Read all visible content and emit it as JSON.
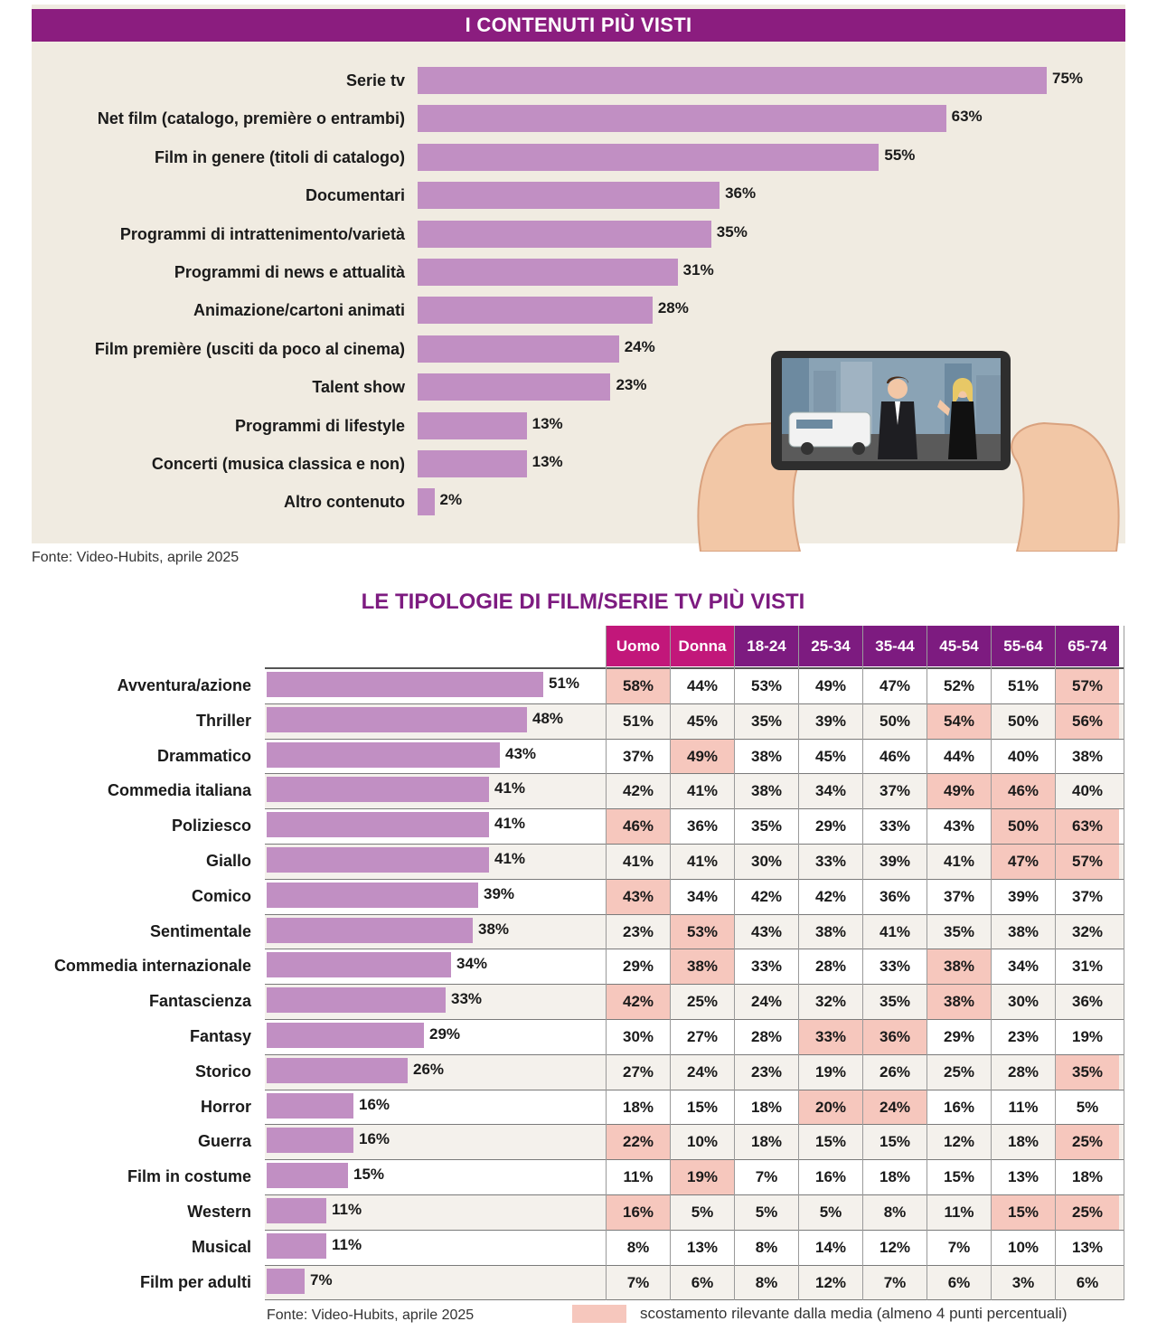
{
  "chart_data": [
    {
      "type": "bar",
      "orientation": "horizontal",
      "title": "I CONTENUTI PIÙ VISTI",
      "categories": [
        "Serie tv",
        "Net film (catalogo, première o entrambi)",
        "Film in genere (titoli di catalogo)",
        "Documentari",
        "Programmi di intrattenimento/varietà",
        "Programmi di news e attualità",
        "Animazione/cartoni animati",
        "Film première (usciti da poco al cinema)",
        "Talent show",
        "Programmi di lifestyle",
        "Concerti (musica classica e non)",
        "Altro contenuto"
      ],
      "values": [
        75,
        63,
        55,
        36,
        35,
        31,
        28,
        24,
        23,
        13,
        13,
        2
      ],
      "value_labels": [
        "75%",
        "63%",
        "55%",
        "36%",
        "35%",
        "31%",
        "28%",
        "24%",
        "23%",
        "13%",
        "13%",
        "2%"
      ],
      "source": "Fonte: Video-Hubits, aprile 2025"
    },
    {
      "type": "table",
      "title": "LE TIPOLOGIE DI FILM/SERIE TV PIÙ VISTI",
      "columns": [
        "Uomo",
        "Donna",
        "18-24",
        "25-34",
        "35-44",
        "45-54",
        "55-64",
        "65-74"
      ],
      "categories": [
        "Avventura/azione",
        "Thriller",
        "Drammatico",
        "Commedia italiana",
        "Poliziesco",
        "Giallo",
        "Comico",
        "Sentimentale",
        "Commedia internazionale",
        "Fantascienza",
        "Fantasy",
        "Storico",
        "Horror",
        "Guerra",
        "Film in costume",
        "Western",
        "Musical",
        "Film per adulti"
      ],
      "values": [
        51,
        48,
        43,
        41,
        41,
        41,
        39,
        38,
        34,
        33,
        29,
        26,
        16,
        16,
        15,
        11,
        11,
        7
      ],
      "value_labels": [
        "51%",
        "48%",
        "43%",
        "41%",
        "41%",
        "41%",
        "39%",
        "38%",
        "34%",
        "33%",
        "29%",
        "26%",
        "16%",
        "16%",
        "15%",
        "11%",
        "11%",
        "7%"
      ],
      "rows": [
        [
          "58%",
          "44%",
          "53%",
          "49%",
          "47%",
          "52%",
          "51%",
          "57%"
        ],
        [
          "51%",
          "45%",
          "35%",
          "39%",
          "50%",
          "54%",
          "50%",
          "56%"
        ],
        [
          "37%",
          "49%",
          "38%",
          "45%",
          "46%",
          "44%",
          "40%",
          "38%"
        ],
        [
          "42%",
          "41%",
          "38%",
          "34%",
          "37%",
          "49%",
          "46%",
          "40%"
        ],
        [
          "46%",
          "36%",
          "35%",
          "29%",
          "33%",
          "43%",
          "50%",
          "63%"
        ],
        [
          "41%",
          "41%",
          "30%",
          "33%",
          "39%",
          "41%",
          "47%",
          "57%"
        ],
        [
          "43%",
          "34%",
          "42%",
          "42%",
          "36%",
          "37%",
          "39%",
          "37%"
        ],
        [
          "23%",
          "53%",
          "43%",
          "38%",
          "41%",
          "35%",
          "38%",
          "32%"
        ],
        [
          "29%",
          "38%",
          "33%",
          "28%",
          "33%",
          "38%",
          "34%",
          "31%"
        ],
        [
          "42%",
          "25%",
          "24%",
          "32%",
          "35%",
          "38%",
          "30%",
          "36%"
        ],
        [
          "30%",
          "27%",
          "28%",
          "33%",
          "36%",
          "29%",
          "23%",
          "19%"
        ],
        [
          "27%",
          "24%",
          "23%",
          "19%",
          "26%",
          "25%",
          "28%",
          "35%"
        ],
        [
          "18%",
          "15%",
          "18%",
          "20%",
          "24%",
          "16%",
          "11%",
          "5%"
        ],
        [
          "22%",
          "10%",
          "18%",
          "15%",
          "15%",
          "12%",
          "18%",
          "25%"
        ],
        [
          "11%",
          "19%",
          "7%",
          "16%",
          "18%",
          "15%",
          "13%",
          "18%"
        ],
        [
          "16%",
          "5%",
          "5%",
          "5%",
          "8%",
          "11%",
          "15%",
          "25%"
        ],
        [
          "8%",
          "13%",
          "8%",
          "14%",
          "12%",
          "7%",
          "10%",
          "13%"
        ],
        [
          "7%",
          "6%",
          "8%",
          "12%",
          "7%",
          "6%",
          "3%",
          "6%"
        ]
      ],
      "highlighted": [
        [
          0,
          0
        ],
        [
          0,
          7
        ],
        [
          1,
          5
        ],
        [
          1,
          7
        ],
        [
          2,
          1
        ],
        [
          3,
          5
        ],
        [
          3,
          6
        ],
        [
          4,
          0
        ],
        [
          4,
          6
        ],
        [
          4,
          7
        ],
        [
          5,
          6
        ],
        [
          5,
          7
        ],
        [
          6,
          0
        ],
        [
          7,
          1
        ],
        [
          8,
          1
        ],
        [
          8,
          5
        ],
        [
          9,
          0
        ],
        [
          9,
          5
        ],
        [
          10,
          3
        ],
        [
          10,
          4
        ],
        [
          11,
          7
        ],
        [
          12,
          3
        ],
        [
          12,
          4
        ],
        [
          13,
          0
        ],
        [
          13,
          7
        ],
        [
          14,
          1
        ],
        [
          15,
          0
        ],
        [
          15,
          6
        ],
        [
          15,
          7
        ]
      ],
      "legend": "scostamento rilevante dalla media (almeno 4 punti percentuali)",
      "source": "Fonte: Video-Hubits, aprile 2025"
    }
  ],
  "colors": {
    "title_bar": "#8b1d7f",
    "bar": "#c18fc3",
    "highlight": "#f6c7bd",
    "header_gender": "#c2177a",
    "header_age": "#7d1b80",
    "panel_bg": "#f0ebe1"
  }
}
